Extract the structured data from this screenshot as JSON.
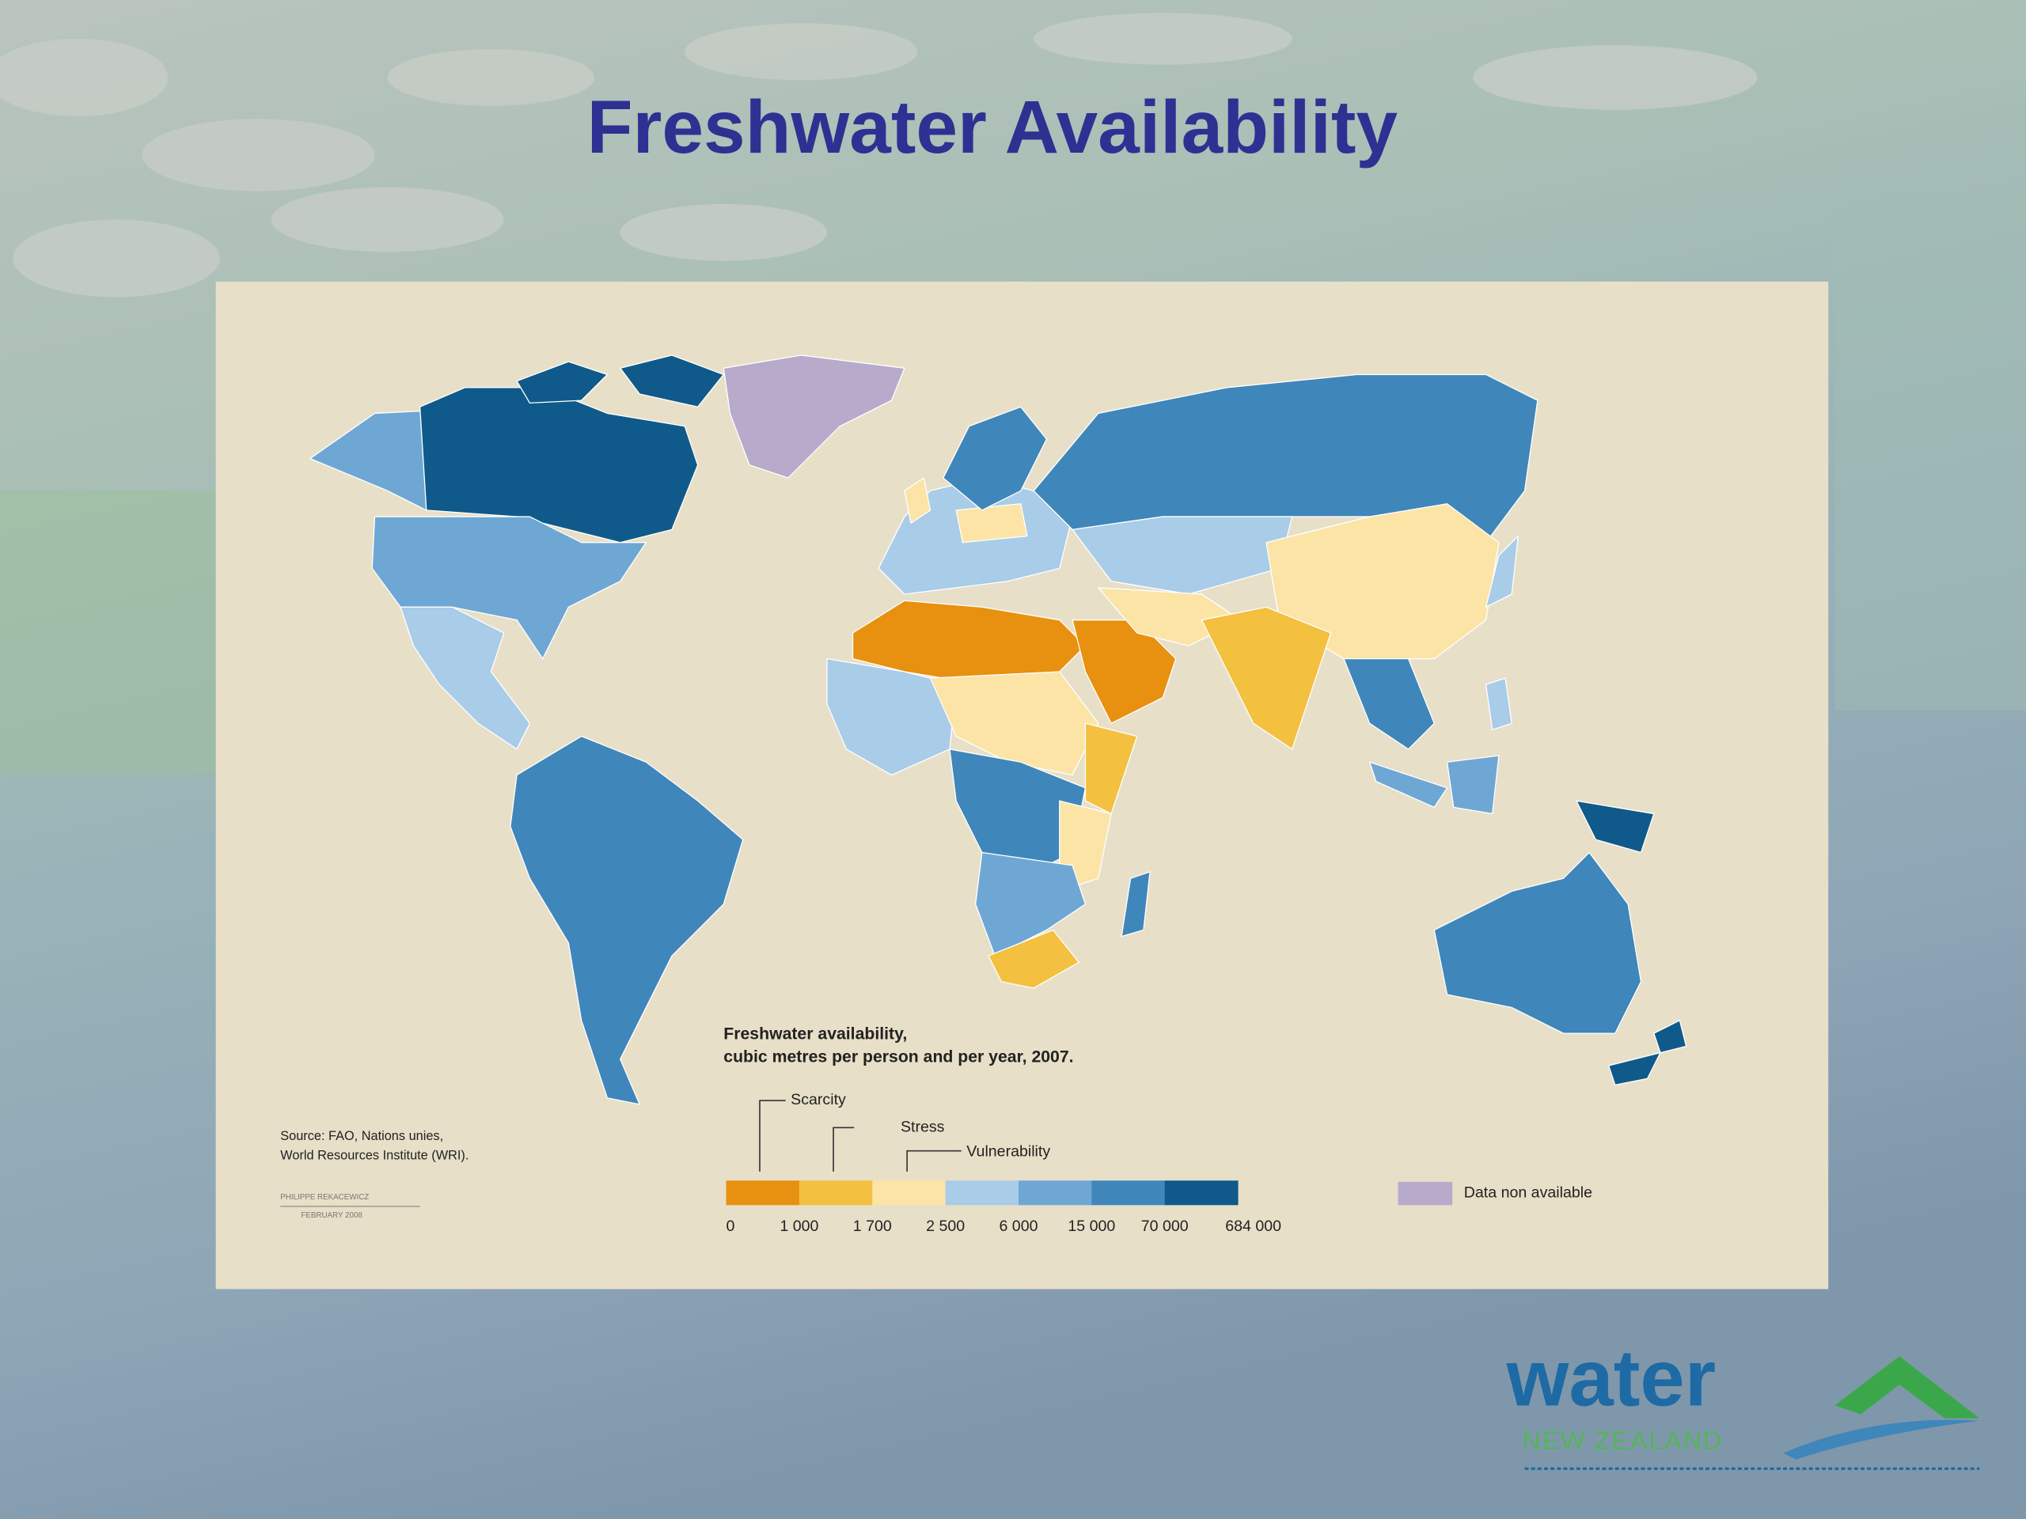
{
  "slide": {
    "title": "Freshwater Availability"
  },
  "map": {
    "legend": {
      "title": [
        "Freshwater availability,",
        "cubic metres per person and per year, 2007."
      ],
      "thresholds": [
        "Scarcity",
        "Stress",
        "Vulnerability"
      ],
      "labels": [
        "0",
        "1 000",
        "1 700",
        "2 500",
        "6 000",
        "15 000",
        "70 000",
        "684 000"
      ],
      "colors": [
        "#e8900f",
        "#f3c040",
        "#fbe4a6",
        "#a9cce8",
        "#6fa7d4",
        "#3f86bb",
        "#0f5a8a"
      ],
      "missing": {
        "label": "Data non available",
        "color": "#b8aacb"
      }
    },
    "source": [
      "Source: FAO, Nations unies,",
      "World Resources Institute (WRI)."
    ],
    "credit": [
      "PHILIPPE REKACEWICZ",
      "FEBRUARY 2008"
    ]
  },
  "logo": {
    "name": "water",
    "region": "NEW ZEALAND"
  }
}
